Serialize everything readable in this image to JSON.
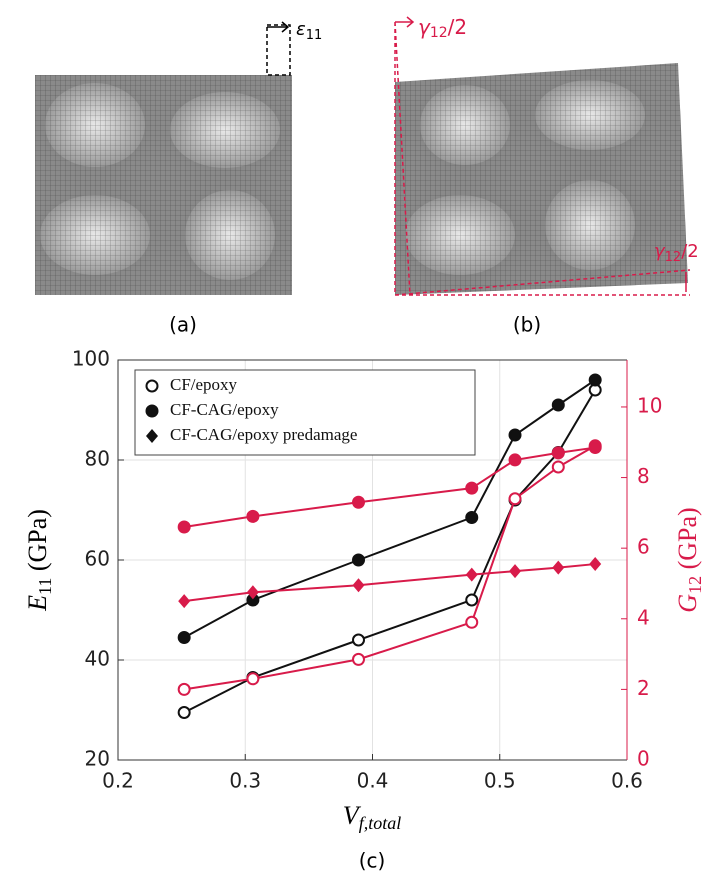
{
  "figure": {
    "panel_labels": [
      "(a)",
      "(b)",
      "(c)"
    ],
    "strain_label": {
      "symbol": "ε",
      "subscript": "11"
    },
    "shear_label": {
      "symbol": "γ",
      "subscript": "12",
      "suffix": "/2"
    }
  },
  "chart_data": {
    "type": "line",
    "x_label": {
      "symbol": "V",
      "subscript": "f,total"
    },
    "y_label": {
      "symbol": "E",
      "subscript": "11",
      "unit": " (GPa)"
    },
    "y2_label": {
      "symbol": "G",
      "subscript": "12",
      "unit": " (GPa)"
    },
    "x": [
      0.252,
      0.306,
      0.389,
      0.478,
      0.512,
      0.546,
      0.575
    ],
    "xlim": [
      0.2,
      0.6
    ],
    "xticks": [
      0.2,
      0.3,
      0.4,
      0.5,
      0.6
    ],
    "ylim": [
      20,
      100
    ],
    "yticks": [
      20,
      40,
      60,
      80,
      100
    ],
    "y2lim": [
      0,
      11.33
    ],
    "y2ticks": [
      0,
      2,
      4,
      6,
      8,
      10
    ],
    "y2_color": "#d81b4a",
    "grid": true,
    "legend_position": "upper left",
    "legend": [
      {
        "label": "CF/epoxy",
        "marker": "open-circle"
      },
      {
        "label": "CF-CAG/epoxy",
        "marker": "filled-circle"
      },
      {
        "label": "CF-CAG/epoxy predamage",
        "marker": "diamond"
      }
    ],
    "series": [
      {
        "color": "#111111",
        "marker": "open-circle",
        "axis": "y",
        "values": [
          29.5,
          36.5,
          44,
          52,
          72,
          81.5,
          94
        ]
      },
      {
        "color": "#111111",
        "marker": "filled-circle",
        "axis": "y",
        "values": [
          44.5,
          52,
          60,
          68.5,
          85,
          91,
          96
        ]
      },
      {
        "color": "#d81b4a",
        "marker": "open-circle",
        "axis": "y2",
        "values": [
          2.0,
          2.3,
          2.85,
          3.9,
          7.4,
          8.3,
          8.9
        ]
      },
      {
        "color": "#d81b4a",
        "marker": "filled-circle",
        "axis": "y2",
        "values": [
          6.6,
          6.9,
          7.3,
          7.7,
          8.5,
          8.7,
          8.85
        ]
      },
      {
        "color": "#d81b4a",
        "marker": "diamond",
        "axis": "y2",
        "values": [
          4.5,
          4.75,
          4.95,
          5.25,
          5.35,
          5.45,
          5.55
        ]
      }
    ]
  }
}
